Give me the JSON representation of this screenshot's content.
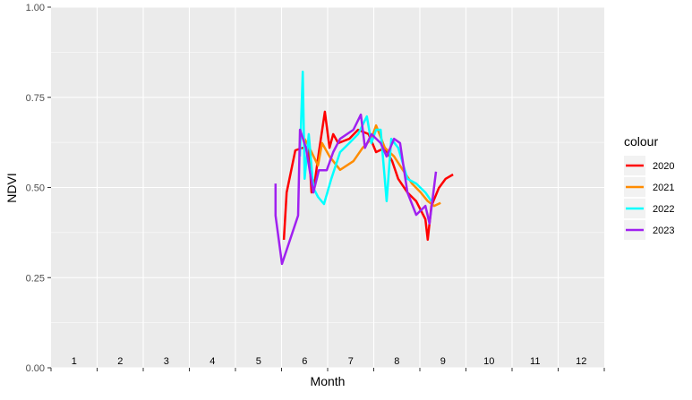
{
  "chart_data": {
    "type": "line",
    "x_label": "Month",
    "y_label": "NDVI",
    "legend_title": "colour",
    "annotations": [
      "1",
      "2",
      "3",
      "4",
      "5",
      "6",
      "7",
      "8",
      "9",
      "10",
      "11",
      "12"
    ],
    "xlim": [
      0,
      12
    ],
    "xticks": [
      0,
      1,
      2,
      3,
      4,
      5,
      6,
      7,
      8,
      9,
      10,
      11,
      12
    ],
    "ylim": [
      0,
      1
    ],
    "yticks": [
      {
        "value": 0,
        "label": "0.00"
      },
      {
        "value": 0.25,
        "label": "0.25"
      },
      {
        "value": 0.5,
        "label": "0.50"
      },
      {
        "value": 0.75,
        "label": "0.75"
      },
      {
        "value": 1,
        "label": "1.00"
      }
    ],
    "yminor": [
      0.125,
      0.375,
      0.625,
      0.875
    ],
    "grid": true,
    "legend": "right",
    "series": [
      {
        "name": "2020",
        "color": "#ff0000",
        "x": [
          5.05,
          5.11,
          5.3,
          5.46,
          5.59,
          5.65,
          5.73,
          5.81,
          5.94,
          6.04,
          6.12,
          6.23,
          6.47,
          6.66,
          6.89,
          7.05,
          7.24,
          7.4,
          7.53,
          7.73,
          7.92,
          8.12,
          8.17,
          8.25,
          8.41,
          8.56,
          8.72
        ],
        "values": [
          0.355,
          0.486,
          0.603,
          0.61,
          0.61,
          0.486,
          0.524,
          0.598,
          0.71,
          0.61,
          0.648,
          0.623,
          0.635,
          0.66,
          0.648,
          0.598,
          0.61,
          0.573,
          0.524,
          0.486,
          0.462,
          0.412,
          0.355,
          0.449,
          0.498,
          0.524,
          0.536
        ]
      },
      {
        "name": "2021",
        "color": "#ff8c00",
        "x": [
          5.5,
          5.65,
          5.79,
          5.88,
          6.04,
          6.27,
          6.56,
          6.76,
          6.95,
          7.05,
          7.24,
          7.44,
          7.63,
          7.83,
          8.02,
          8.17,
          8.31,
          8.45
        ],
        "values": [
          0.635,
          0.598,
          0.561,
          0.623,
          0.586,
          0.549,
          0.573,
          0.61,
          0.635,
          0.672,
          0.61,
          0.586,
          0.549,
          0.511,
          0.486,
          0.462,
          0.449,
          0.457
        ]
      },
      {
        "name": "2022",
        "color": "#00ffff",
        "x": [
          5.4,
          5.46,
          5.5,
          5.59,
          5.69,
          5.79,
          5.92,
          6.08,
          6.27,
          6.47,
          6.66,
          6.85,
          6.95,
          7.05,
          7.15,
          7.28,
          7.38,
          7.53,
          7.73,
          7.92,
          8.12,
          8.25
        ],
        "values": [
          0.586,
          0.821,
          0.524,
          0.648,
          0.499,
          0.474,
          0.454,
          0.524,
          0.598,
          0.623,
          0.648,
          0.697,
          0.623,
          0.66,
          0.66,
          0.462,
          0.635,
          0.61,
          0.524,
          0.511,
          0.486,
          0.462
        ]
      },
      {
        "name": "2023",
        "color": "#a020f0",
        "x": [
          4.87,
          4.87,
          5.01,
          5.36,
          5.4,
          5.53,
          5.69,
          5.81,
          5.98,
          6.12,
          6.27,
          6.56,
          6.72,
          6.81,
          6.95,
          7.15,
          7.28,
          7.44,
          7.57,
          7.73,
          7.92,
          8.12,
          8.21,
          8.35
        ],
        "values": [
          0.511,
          0.422,
          0.288,
          0.422,
          0.66,
          0.61,
          0.486,
          0.548,
          0.548,
          0.598,
          0.635,
          0.66,
          0.702,
          0.61,
          0.648,
          0.623,
          0.586,
          0.635,
          0.623,
          0.486,
          0.424,
          0.449,
          0.4,
          0.544
        ]
      }
    ]
  }
}
